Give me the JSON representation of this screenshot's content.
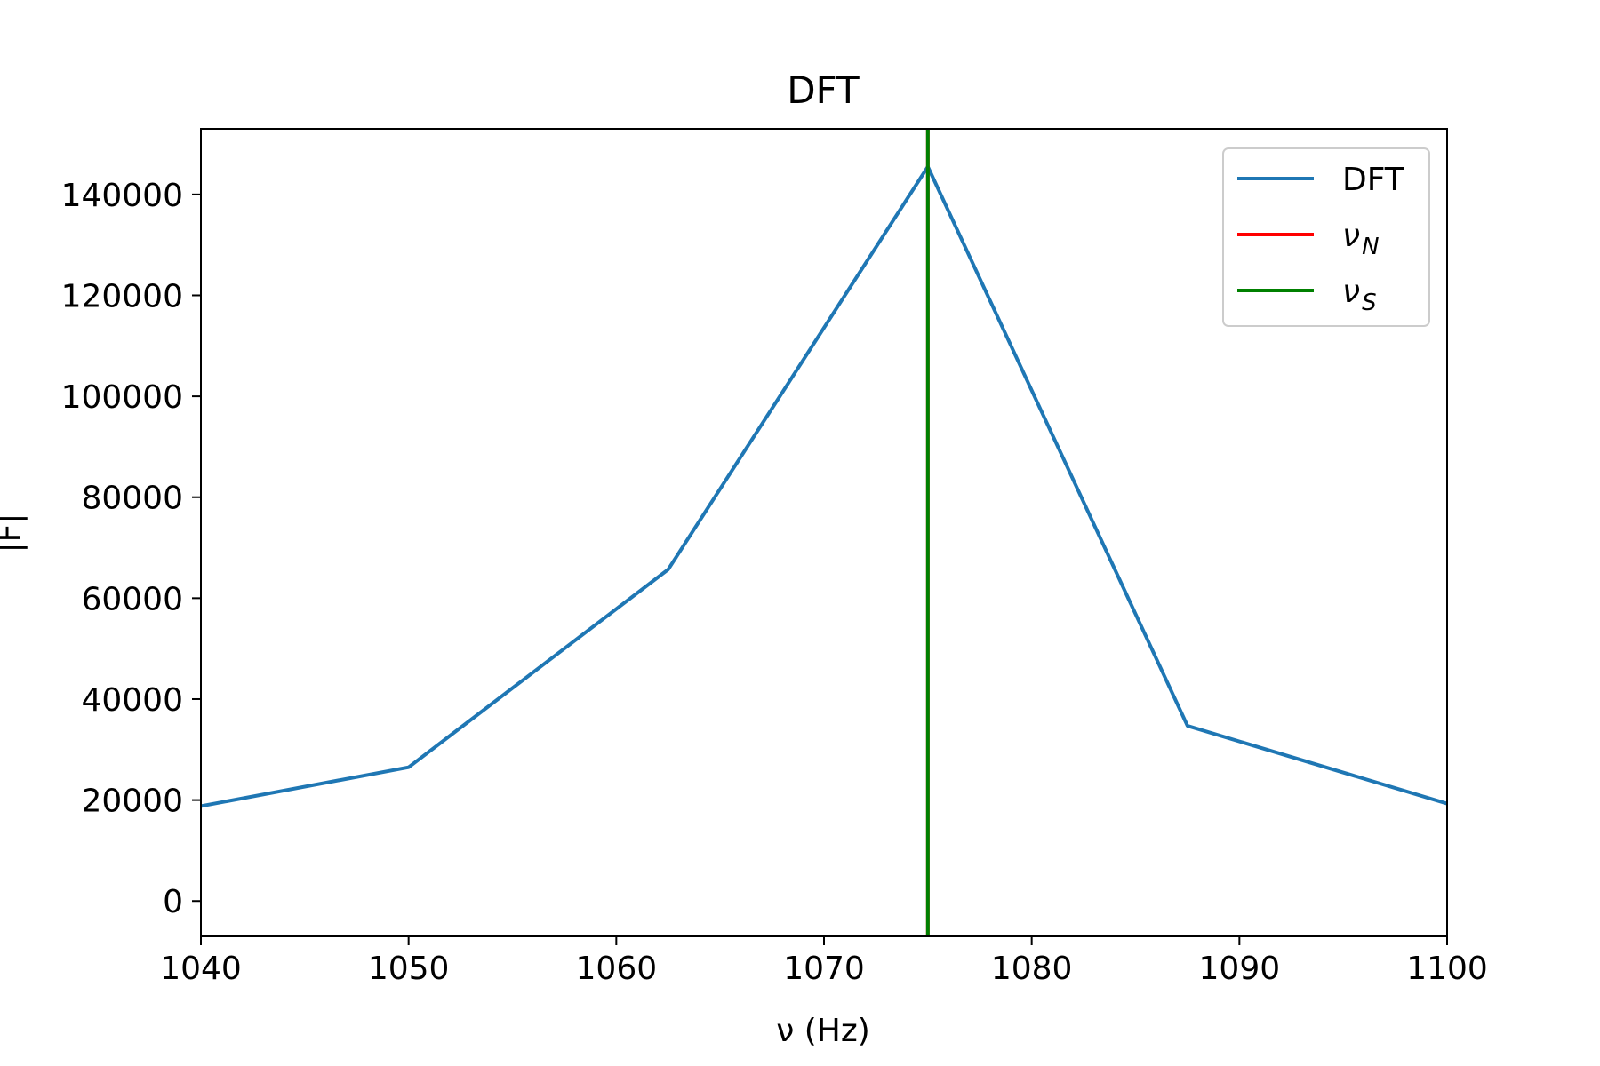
{
  "chart_data": {
    "type": "line",
    "title": "DFT",
    "xlabel": "ν (Hz)",
    "ylabel": "|F|",
    "xlim": [
      1040,
      1100
    ],
    "ylim": [
      -7000,
      153000
    ],
    "xticks": [
      1040,
      1050,
      1060,
      1070,
      1080,
      1090,
      1100
    ],
    "yticks": [
      0,
      20000,
      40000,
      60000,
      80000,
      100000,
      120000,
      140000
    ],
    "grid": false,
    "legend_position": "top-right",
    "series": [
      {
        "name": "DFT",
        "color": "#1f77b4",
        "x": [
          1040,
          1050,
          1062.5,
          1075,
          1087.5,
          1100
        ],
        "y": [
          18800,
          26500,
          65700,
          145500,
          34700,
          19300
        ]
      }
    ],
    "vlines": [
      {
        "name": "ν_N",
        "label_main": "ν",
        "label_sub": "N",
        "color": "#ff0000",
        "x": 1075
      },
      {
        "name": "ν_S",
        "label_main": "ν",
        "label_sub": "S",
        "color": "#008000",
        "x": 1075
      }
    ]
  }
}
